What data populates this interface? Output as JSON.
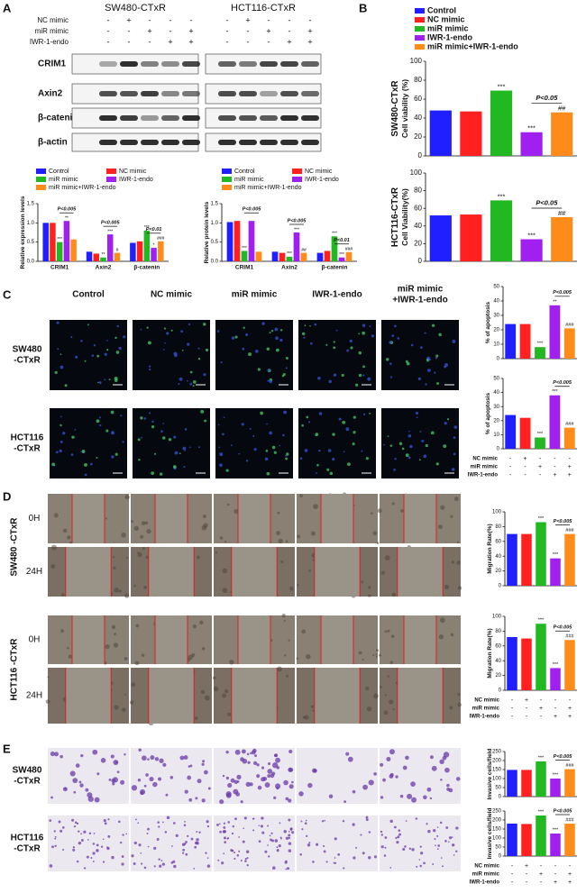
{
  "panels": [
    "A",
    "B",
    "C",
    "D",
    "E"
  ],
  "blots": {
    "titles": [
      "SW480-CTxR",
      "HCT116-CTxR"
    ],
    "conditions": [
      {
        "label": "NC mimic",
        "signs": [
          "-",
          "+",
          "-",
          "-",
          "-"
        ]
      },
      {
        "label": "miR mimic",
        "signs": [
          "-",
          "-",
          "+",
          "-",
          "+"
        ]
      },
      {
        "label": "IWR-1-endo",
        "signs": [
          "-",
          "-",
          "-",
          "+",
          "+"
        ]
      }
    ],
    "proteins": [
      "CRIM1",
      "Axin2",
      "β-catenin",
      "β-actin"
    ]
  },
  "panel_c": {
    "columns": [
      [
        "Control"
      ],
      [
        "NC mimic"
      ],
      [
        "miR mimic"
      ],
      [
        "IWR-1-endo"
      ],
      [
        "miR mimic",
        "+IWR-1-endo"
      ]
    ],
    "rows": [
      [
        "SW480",
        "-CTxR"
      ],
      [
        "HCT116",
        "-CTxR"
      ]
    ]
  },
  "panel_d": {
    "groups": [
      "SW480 -CTxR",
      "HCT116 -CTxR"
    ],
    "times": [
      "0H",
      "24H"
    ]
  },
  "panel_e": {
    "rows": [
      [
        "SW480",
        "-CTxR"
      ],
      [
        "HCT116",
        "-CTxR"
      ]
    ]
  },
  "chart_data": [
    {
      "type": "bar",
      "ylabel": "Relative expression levels",
      "categories": [
        "CRIM1",
        "Axin2",
        "β-catenin"
      ],
      "series": [
        {
          "name": "Control",
          "color": "#1f1fff",
          "values": [
            1.0,
            0.25,
            0.48
          ]
        },
        {
          "name": "NC mimic",
          "color": "#ff2020",
          "values": [
            1.0,
            0.2,
            0.52
          ]
        },
        {
          "name": "miR mimic",
          "color": "#22b822",
          "values": [
            0.5,
            0.1,
            0.8
          ],
          "significance": [
            "***",
            "**",
            "***"
          ]
        },
        {
          "name": "IWR-1-endo",
          "color": "#a020f0",
          "values": [
            1.05,
            0.7,
            0.35
          ],
          "significance": [
            "**",
            "***",
            "*"
          ]
        },
        {
          "name": "miR mimic+IWR-1-endo",
          "color": "#ff8c1a",
          "values": [
            0.57,
            0.22,
            0.52
          ],
          "significance": [
            null,
            "#",
            "###"
          ]
        }
      ],
      "comparisons": [
        "P<0.005",
        "P<0.005",
        "P<0.01"
      ],
      "ylim": [
        0,
        1.5
      ],
      "yticks": [
        {
          "value": 0,
          "label": "0.0"
        },
        {
          "value": 0.5,
          "label": "0.5"
        },
        {
          "value": 1,
          "label": "1.0"
        },
        {
          "value": 1.5,
          "label": "1.5"
        }
      ],
      "legend": true
    },
    {
      "type": "bar",
      "ylabel": "Relative protein levels",
      "categories": [
        "CRIM1",
        "Axin2",
        "β-catenin"
      ],
      "series": [
        {
          "name": "Control",
          "color": "#1f1fff",
          "values": [
            1.02,
            0.25,
            0.22
          ]
        },
        {
          "name": "NC mimic",
          "color": "#ff2020",
          "values": [
            1.05,
            0.22,
            0.27
          ]
        },
        {
          "name": "miR mimic",
          "color": "#22b822",
          "values": [
            0.27,
            0.12,
            0.65
          ],
          "significance": [
            "***",
            "***",
            "***"
          ]
        },
        {
          "name": "IWR-1-endo",
          "color": "#a020f0",
          "values": [
            1.05,
            0.75,
            0.1
          ],
          "significance": [
            null,
            "***",
            "***"
          ]
        },
        {
          "name": "miR mimic+IWR-1-endo",
          "color": "#ff8c1a",
          "values": [
            0.25,
            0.22,
            0.24
          ],
          "significance": [
            null,
            "##",
            "###"
          ]
        }
      ],
      "comparisons": [
        "P<0.005",
        "P<0.005",
        "P<0.01"
      ],
      "ylim": [
        0,
        1.5
      ],
      "yticks": [
        {
          "value": 0,
          "label": "0.0"
        },
        {
          "value": 0.5,
          "label": "0.5"
        },
        {
          "value": 1,
          "label": "1.0"
        },
        {
          "value": 1.5,
          "label": "1.5"
        }
      ],
      "legend": true
    },
    {
      "type": "bar",
      "group_label": "SW480-CTxR",
      "ylabel": "Cell viability (%)",
      "series": [
        {
          "name": "Control",
          "color": "#1f1fff",
          "values": [
            48
          ]
        },
        {
          "name": "NC mimic",
          "color": "#ff2020",
          "values": [
            47
          ]
        },
        {
          "name": "miR mimic",
          "color": "#22b822",
          "values": [
            69
          ],
          "significance": "***"
        },
        {
          "name": "IWR-1-endo",
          "color": "#a020f0",
          "values": [
            25
          ],
          "significance": "***"
        },
        {
          "name": "miR mimic+IWR-1-endo",
          "color": "#ff8c1a",
          "values": [
            46
          ],
          "significance": "##"
        }
      ],
      "comparison": "P<0.05",
      "ylim": [
        0,
        100
      ],
      "yticks": [
        0,
        20,
        40,
        60,
        80,
        100
      ],
      "legend": true
    },
    {
      "type": "bar",
      "group_label": "HCT116-CTxR",
      "ylabel": "Cell Viability(%)",
      "series": [
        {
          "color": "#1f1fff",
          "values": [
            52
          ]
        },
        {
          "color": "#ff2020",
          "values": [
            53
          ]
        },
        {
          "color": "#22b822",
          "values": [
            69
          ],
          "significance": "***"
        },
        {
          "color": "#a020f0",
          "values": [
            25
          ],
          "significance": "***"
        },
        {
          "color": "#ff8c1a",
          "values": [
            50
          ],
          "significance": "##"
        }
      ],
      "comparison": "P<0.05",
      "ylim": [
        0,
        100
      ],
      "yticks": [
        0,
        20,
        40,
        60,
        80,
        100
      ]
    },
    {
      "type": "bar",
      "ylabel": "% of apoptosis",
      "series": [
        {
          "color": "#1f1fff",
          "values": [
            24
          ]
        },
        {
          "color": "#ff2020",
          "values": [
            24
          ]
        },
        {
          "color": "#22b822",
          "values": [
            8
          ],
          "significance": "***"
        },
        {
          "color": "#a020f0",
          "values": [
            37
          ],
          "significance": "**"
        },
        {
          "color": "#ff8c1a",
          "values": [
            21
          ],
          "significance": "###"
        }
      ],
      "comparison": "P<0.005",
      "ylim": [
        0,
        50
      ],
      "yticks": [
        0,
        10,
        20,
        30,
        40,
        50
      ]
    },
    {
      "type": "bar",
      "ylabel": "% of apoptosis",
      "series": [
        {
          "color": "#1f1fff",
          "values": [
            24
          ]
        },
        {
          "color": "#ff2020",
          "values": [
            22
          ]
        },
        {
          "color": "#22b822",
          "values": [
            8
          ],
          "significance": "***"
        },
        {
          "color": "#a020f0",
          "values": [
            38
          ],
          "significance": "***"
        },
        {
          "color": "#ff8c1a",
          "values": [
            15
          ],
          "significance": "###"
        }
      ],
      "comparison": "P<0.005",
      "ylim": [
        0,
        50
      ],
      "yticks": [
        0,
        10,
        20,
        30,
        40,
        50
      ],
      "conditions": [
        {
          "label": "NC mimic",
          "signs": [
            "-",
            "+",
            "-",
            "-",
            "-"
          ]
        },
        {
          "label": "miR mimic",
          "signs": [
            "-",
            "-",
            "+",
            "-",
            "+"
          ]
        },
        {
          "label": "IWR-1-endo",
          "signs": [
            "-",
            "-",
            "-",
            "+",
            "+"
          ]
        }
      ]
    },
    {
      "type": "bar",
      "ylabel": "Migration Rate(%)",
      "series": [
        {
          "color": "#1f1fff",
          "values": [
            70
          ]
        },
        {
          "color": "#ff2020",
          "values": [
            70
          ]
        },
        {
          "color": "#22b822",
          "values": [
            86
          ],
          "significance": "***"
        },
        {
          "color": "#a020f0",
          "values": [
            37
          ],
          "significance": "***"
        },
        {
          "color": "#ff8c1a",
          "values": [
            70
          ],
          "significance": "###"
        }
      ],
      "comparison": "P<0.005",
      "ylim": [
        0,
        100
      ],
      "yticks": [
        0,
        20,
        40,
        60,
        80,
        100
      ]
    },
    {
      "type": "bar",
      "ylabel": "Migration Rate(%)",
      "series": [
        {
          "color": "#1f1fff",
          "values": [
            72
          ]
        },
        {
          "color": "#ff2020",
          "values": [
            70
          ]
        },
        {
          "color": "#22b822",
          "values": [
            90
          ],
          "significance": "***"
        },
        {
          "color": "#a020f0",
          "values": [
            30
          ],
          "significance": "***"
        },
        {
          "color": "#ff8c1a",
          "values": [
            68
          ],
          "significance": "###"
        }
      ],
      "comparison": "P<0.005",
      "ylim": [
        0,
        100
      ],
      "yticks": [
        0,
        20,
        40,
        60,
        80,
        100
      ],
      "conditions": [
        {
          "label": "NC mimic",
          "signs": [
            "-",
            "+",
            "-",
            "-",
            "-"
          ]
        },
        {
          "label": "miR mimic",
          "signs": [
            "-",
            "-",
            "+",
            "-",
            "+"
          ]
        },
        {
          "label": "IWR-1-endo",
          "signs": [
            "-",
            "-",
            "-",
            "+",
            "+"
          ]
        }
      ]
    },
    {
      "type": "bar",
      "ylabel": "Invasive cells/field",
      "series": [
        {
          "color": "#1f1fff",
          "values": [
            148
          ]
        },
        {
          "color": "#ff2020",
          "values": [
            148
          ]
        },
        {
          "color": "#22b822",
          "values": [
            195
          ],
          "significance": "***"
        },
        {
          "color": "#a020f0",
          "values": [
            100
          ],
          "significance": "***"
        },
        {
          "color": "#ff8c1a",
          "values": [
            152
          ],
          "significance": "###"
        }
      ],
      "comparison": "P<0.005",
      "ylim": [
        0,
        250
      ],
      "yticks": [
        0,
        50,
        100,
        150,
        200,
        250
      ]
    },
    {
      "type": "bar",
      "ylabel": "Invasive cells/field",
      "series": [
        {
          "color": "#1f1fff",
          "values": [
            180
          ]
        },
        {
          "color": "#ff2020",
          "values": [
            178
          ]
        },
        {
          "color": "#22b822",
          "values": [
            225
          ],
          "significance": "***"
        },
        {
          "color": "#a020f0",
          "values": [
            125
          ],
          "significance": "***"
        },
        {
          "color": "#ff8c1a",
          "values": [
            180
          ],
          "significance": "###"
        }
      ],
      "comparison": "P<0.005",
      "ylim": [
        0,
        250
      ],
      "yticks": [
        0,
        50,
        100,
        150,
        200,
        250
      ],
      "conditions": [
        {
          "label": "NC mimic",
          "signs": [
            "-",
            "+",
            "-",
            "-",
            "-"
          ]
        },
        {
          "label": "miR mimic",
          "signs": [
            "-",
            "-",
            "+",
            "-",
            "+"
          ]
        },
        {
          "label": "IWR-1-endo",
          "signs": [
            "-",
            "-",
            "-",
            "+",
            "+"
          ]
        }
      ]
    }
  ]
}
